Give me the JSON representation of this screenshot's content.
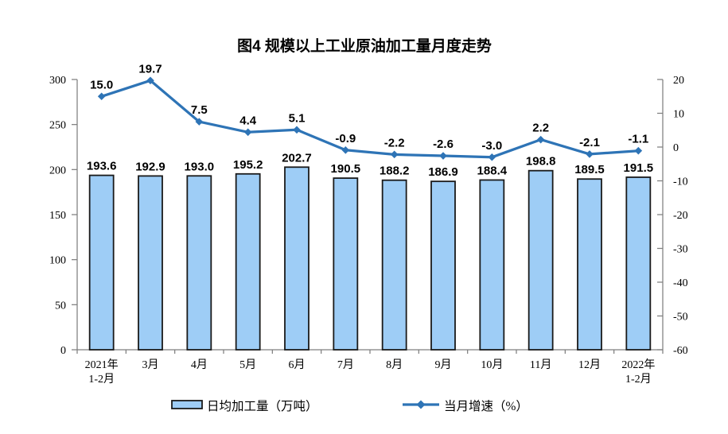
{
  "chart_data": {
    "type": "bar",
    "subtype": "bar-line-combo",
    "title": "图4 规模以上工业原油加工量月度走势",
    "categories": [
      [
        "2021年",
        "1-2月"
      ],
      [
        "3月"
      ],
      [
        "4月"
      ],
      [
        "5月"
      ],
      [
        "6月"
      ],
      [
        "7月"
      ],
      [
        "8月"
      ],
      [
        "9月"
      ],
      [
        "10月"
      ],
      [
        "11月"
      ],
      [
        "12月"
      ],
      [
        "2022年",
        "1-2月"
      ]
    ],
    "series": [
      {
        "name": "日均加工量（万吨）",
        "type": "bar",
        "axis": "left",
        "values": [
          193.6,
          192.9,
          193.0,
          195.2,
          202.7,
          190.5,
          188.2,
          186.9,
          188.4,
          198.8,
          189.5,
          191.5
        ]
      },
      {
        "name": "当月增速（%）",
        "type": "line",
        "axis": "right",
        "values": [
          15.0,
          19.7,
          7.5,
          4.4,
          5.1,
          -0.9,
          -2.2,
          -2.6,
          -3.0,
          2.2,
          -2.1,
          -1.1
        ]
      }
    ],
    "left_axis": {
      "min": 0,
      "max": 300,
      "ticks": [
        0,
        50,
        100,
        150,
        200,
        250,
        300
      ]
    },
    "right_axis": {
      "min": -60,
      "max": 20,
      "ticks": [
        20,
        10,
        0,
        -10,
        -20,
        -30,
        -40,
        -50,
        -60
      ]
    },
    "grid": false,
    "legend_position": "bottom",
    "colors": {
      "bar_fill": "#9ECDF6",
      "bar_border": "#1a1a1a",
      "line": "#2E74B6",
      "axis": "#7f7f7f",
      "text": "#000000"
    }
  }
}
